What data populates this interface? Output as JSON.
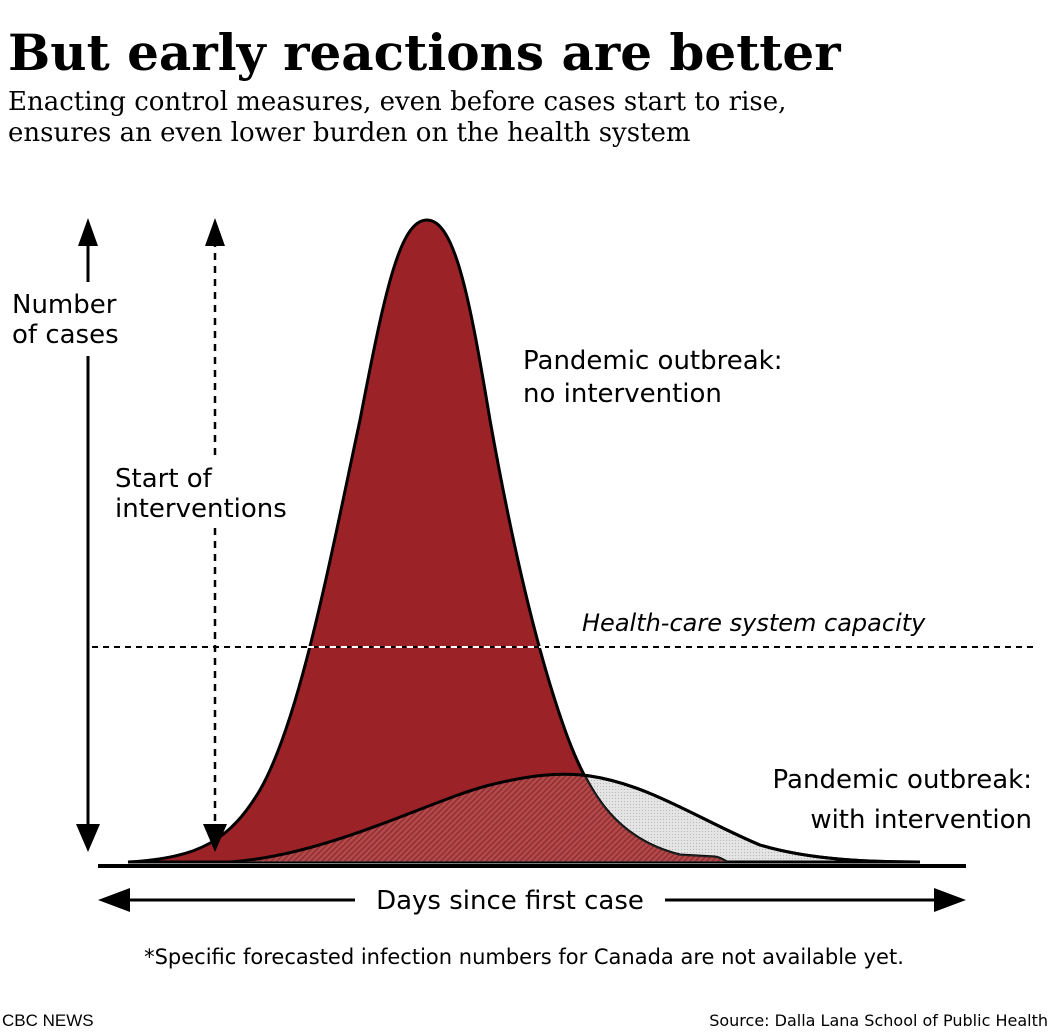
{
  "title": "But early reactions are better",
  "subtitle_lines": [
    "Enacting control measures, even before cases start to rise,",
    "ensures an even lower burden on the health system"
  ],
  "y_axis_label": [
    "Number",
    "of cases"
  ],
  "intervention_label": [
    "Start of",
    "interventions"
  ],
  "no_intervention_label": [
    "Pandemic outbreak:",
    "no intervention"
  ],
  "capacity_label": "Health-care system capacity",
  "with_intervention_label": [
    "Pandemic outbreak:",
    "with intervention"
  ],
  "x_axis_label": "Days since first case",
  "footnote": "*Specific forecasted infection numbers for Canada are not available yet.",
  "brand": "CBC NEWS",
  "source": "Source: Dalla Lana School of Public Health",
  "colors": {
    "no_intervention": "#9b2226",
    "with_intervention_fill": "#dcdcdc",
    "overlap": "#b0494b",
    "ink": "#000000"
  }
}
